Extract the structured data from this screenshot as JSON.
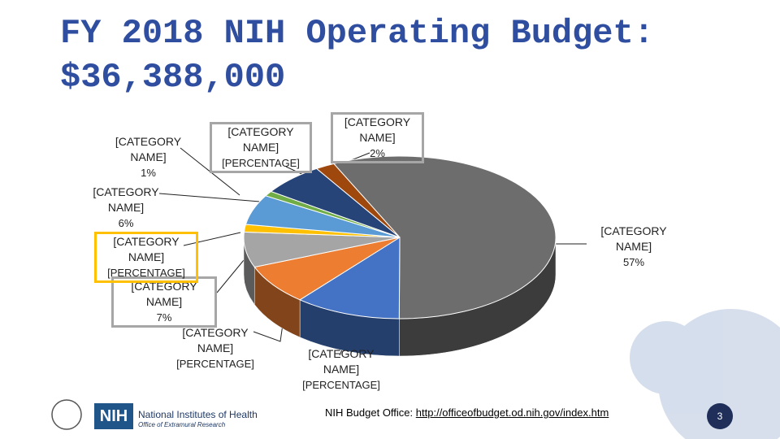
{
  "header": {
    "title": "FY 2018 NIH Operating Budget: $36,388,000"
  },
  "chart_data": {
    "type": "pie3d",
    "categories": [
      "[CATEGORY NAME]",
      "[CATEGORY NAME]",
      "[CATEGORY NAME]",
      "[CATEGORY NAME]",
      "[CATEGORY NAME]",
      "[CATEGORY NAME]",
      "[CATEGORY NAME]",
      "[CATEGORY NAME]",
      "[CATEGORY NAME]"
    ],
    "values": [
      57,
      11,
      8,
      7,
      1.5,
      6,
      1,
      6.5,
      2
    ],
    "value_labels": [
      "57%",
      "[PERCENTAGE]",
      "[PERCENTAGE]",
      "7%",
      "[PERCENTAGE]",
      "6%",
      "1%",
      "[PERCENTAGE]",
      "2%"
    ],
    "colors": [
      "#6d6d6d",
      "#4472c4",
      "#ed7d31",
      "#a5a5a5",
      "#ffc000",
      "#5b9bd5",
      "#70ad47",
      "#264478",
      "#9e480e"
    ]
  },
  "footer": {
    "logo": "NIH",
    "institute": "National Institutes of Health",
    "office": "Office of Extramural Research",
    "budget_office": "NIH Budget Office:",
    "link": "http://officeofbudget.od.nih.gov/index.htm",
    "page": "3"
  }
}
